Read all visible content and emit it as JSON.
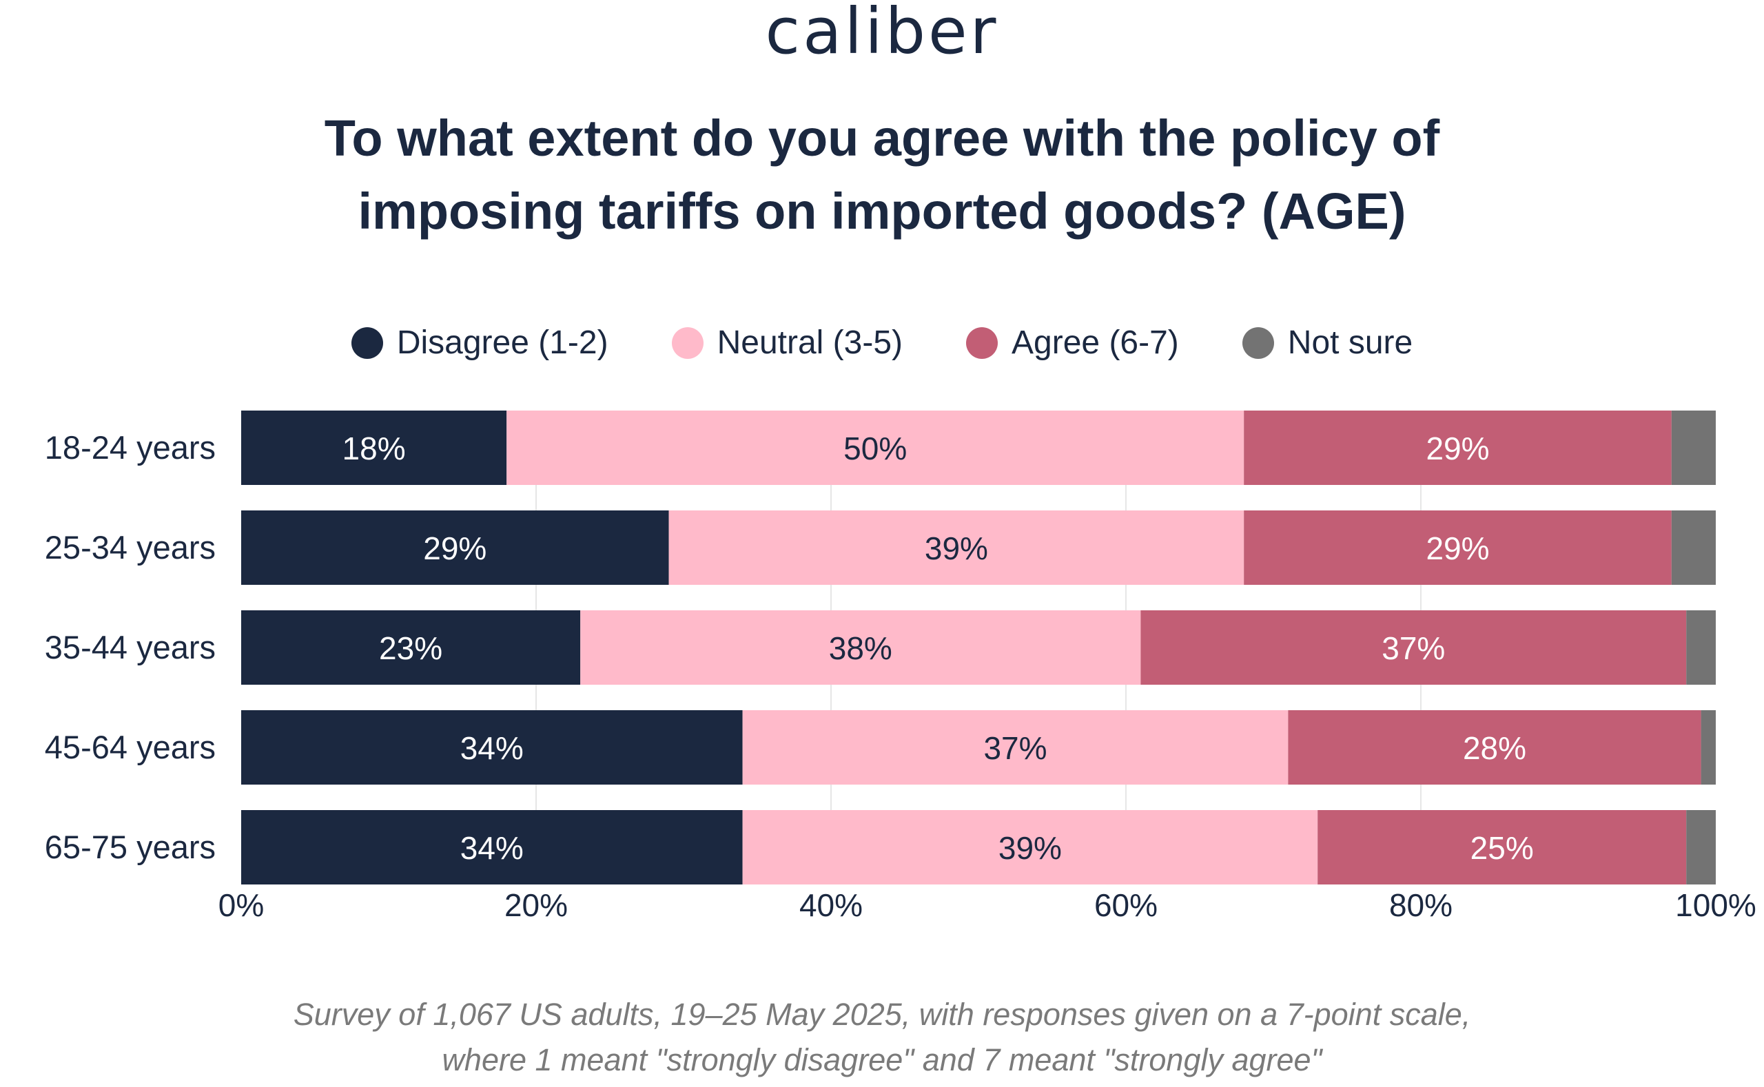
{
  "logo": "caliber",
  "title_line1": "To what extent do you agree with the policy of",
  "title_line2": "imposing tariffs on imported goods? (AGE)",
  "footnote_line1": "Survey of 1,067 US adults, 19–25 May 2025, with responses given on a 7-point scale,",
  "footnote_line2": "where 1 meant \"strongly disagree\" and 7 meant \"strongly agree\"",
  "colors": {
    "disagree": "#1b2840",
    "neutral": "#ffbaca",
    "agree": "#c25e75",
    "not_sure": "#737373",
    "grid": "#e6e6e6"
  },
  "chart_data": {
    "type": "bar",
    "orientation": "horizontal",
    "stacked": true,
    "title": "To what extent do you agree with the policy of imposing tariffs on imported goods? (AGE)",
    "xlabel": "",
    "ylabel": "",
    "xlim": [
      0,
      100
    ],
    "x_ticks": [
      "0%",
      "20%",
      "40%",
      "60%",
      "80%",
      "100%"
    ],
    "x_tick_values": [
      0,
      20,
      40,
      60,
      80,
      100
    ],
    "legend_position": "top",
    "grid": true,
    "categories": [
      "18-24 years",
      "25-34 years",
      "35-44 years",
      "45-64 years",
      "65-75 years"
    ],
    "series": [
      {
        "name": "Disagree (1-2)",
        "key": "disagree",
        "values": [
          18,
          29,
          23,
          34,
          34
        ],
        "labels": [
          "18%",
          "29%",
          "23%",
          "34%",
          "34%"
        ],
        "label_color": "#ffffff"
      },
      {
        "name": "Neutral (3-5)",
        "key": "neutral",
        "values": [
          50,
          39,
          38,
          37,
          39
        ],
        "labels": [
          "50%",
          "39%",
          "38%",
          "37%",
          "39%"
        ],
        "label_color": "#1b2840"
      },
      {
        "name": "Agree (6-7)",
        "key": "agree",
        "values": [
          29,
          29,
          37,
          28,
          25
        ],
        "labels": [
          "29%",
          "29%",
          "37%",
          "28%",
          "25%"
        ],
        "label_color": "#ffffff"
      },
      {
        "name": "Not sure",
        "key": "not_sure",
        "values": [
          3,
          3,
          2,
          1,
          2
        ],
        "labels": [
          "",
          "",
          "",
          "",
          ""
        ],
        "label_color": "#ffffff"
      }
    ]
  }
}
